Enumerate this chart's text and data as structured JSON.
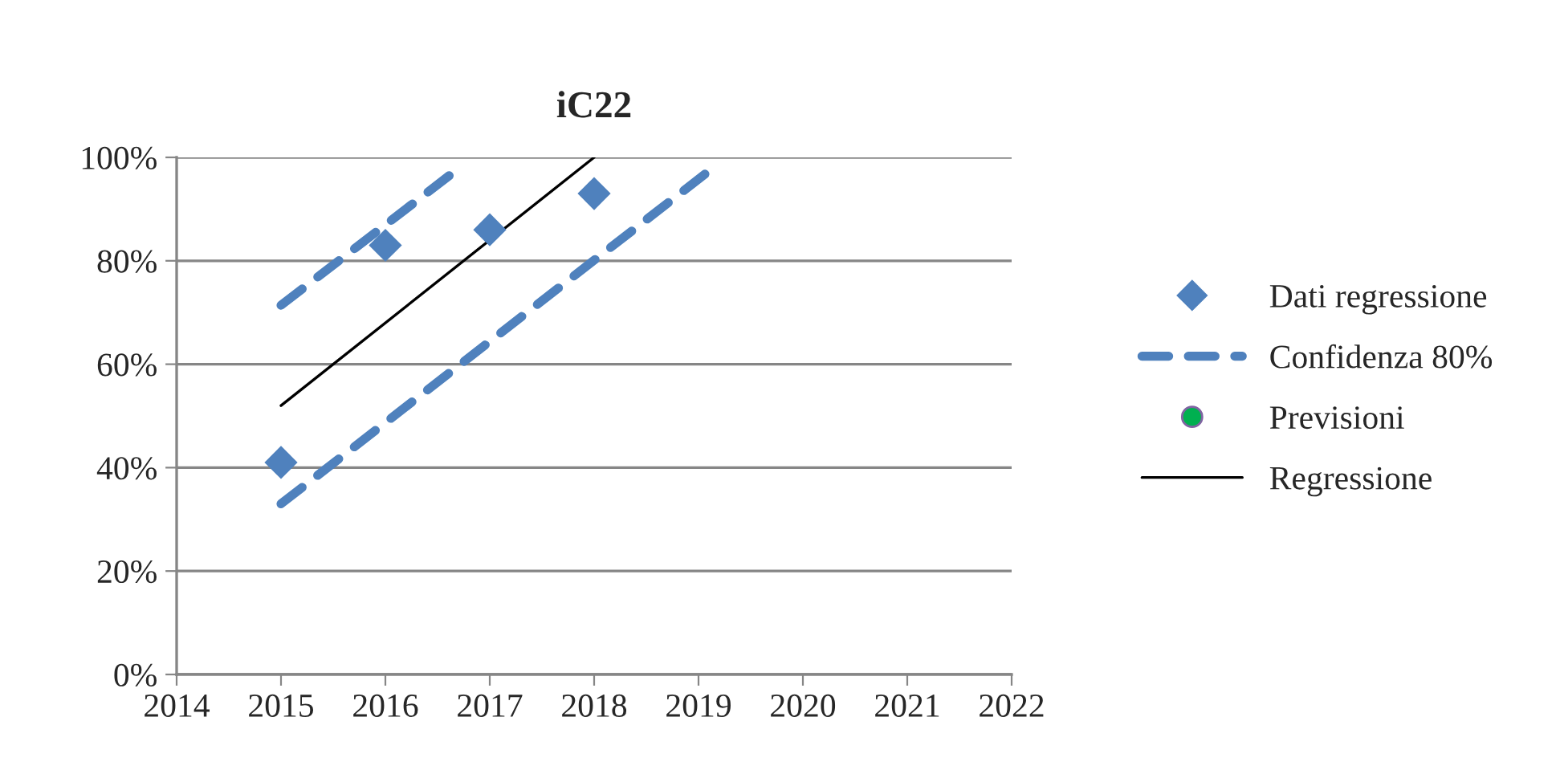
{
  "chart_data": {
    "type": "scatter",
    "title": "iC22",
    "xlim": [
      2014,
      2022
    ],
    "xticks": [
      2014,
      2015,
      2016,
      2017,
      2018,
      2019,
      2020,
      2021,
      2022
    ],
    "ylim": [
      0,
      1
    ],
    "yticks": [
      {
        "value": 0,
        "label": "0%"
      },
      {
        "value": 0.2,
        "label": "20%"
      },
      {
        "value": 0.4,
        "label": "40%"
      },
      {
        "value": 0.6,
        "label": "60%"
      },
      {
        "value": 0.8,
        "label": "80%"
      },
      {
        "value": 1,
        "label": "100%"
      }
    ],
    "grid": "y",
    "legend": "right",
    "series": [
      {
        "name": "Dati regressione",
        "marker": "diamond",
        "color": "#4f81bd",
        "x": [
          2015,
          2016,
          2017,
          2018
        ],
        "values": [
          0.41,
          0.83,
          0.86,
          0.93
        ]
      },
      {
        "name": "Confidenza 80%",
        "type": "line",
        "line_style": "dashed",
        "marker": "none",
        "color": "#4f81bd",
        "x": [
          2015,
          2016.71
        ],
        "values": [
          0.714,
          0.98
        ]
      },
      {
        "type": "line",
        "line_style": "dashed",
        "marker": "none",
        "color": "#4f81bd",
        "x": [
          2015,
          2019.14
        ],
        "values": [
          0.33,
          0.98
        ]
      },
      {
        "name": "Previsioni",
        "type": "scatter",
        "marker": "circle",
        "color": "#00b050"
      },
      {
        "name": "Regressione",
        "type": "line",
        "line_style": "solid",
        "marker": "none",
        "color": "#000000",
        "x": [
          2015,
          2018
        ],
        "values": [
          0.52,
          1.0
        ]
      }
    ]
  }
}
